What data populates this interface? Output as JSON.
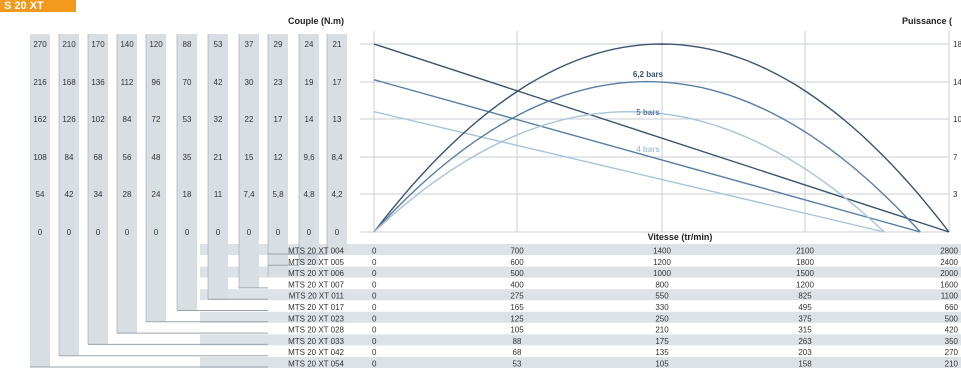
{
  "header": {
    "badge": "S 20 XT"
  },
  "colors": {
    "column_bg": "#d9dee3",
    "row_band": "#dde2e7",
    "grid": "#c9ced3",
    "curve_6_2": "#3a536e",
    "curve_5": "#5a7ea2",
    "curve_4": "#a9c3da",
    "accent": "#f39a1e"
  },
  "chart_data": {
    "type": "line",
    "title": "",
    "y_left_label": "Couple (N.m)",
    "y_right_label": "Puissance (",
    "xlabel": "Vitesse (tr/min)",
    "y_right_ticks": [
      "18",
      "14",
      "10",
      "7",
      "3",
      ""
    ],
    "left_scale_columns": [
      [
        "270",
        "216",
        "162",
        "108",
        "54",
        "0"
      ],
      [
        "210",
        "168",
        "126",
        "84",
        "42",
        "0"
      ],
      [
        "170",
        "136",
        "102",
        "68",
        "34",
        "0"
      ],
      [
        "140",
        "112",
        "84",
        "56",
        "28",
        "0"
      ],
      [
        "120",
        "96",
        "72",
        "48",
        "24",
        "0"
      ],
      [
        "88",
        "70",
        "53",
        "35",
        "18",
        "0"
      ],
      [
        "53",
        "42",
        "32",
        "21",
        "11",
        "0"
      ],
      [
        "37",
        "30",
        "22",
        "15",
        "7,4",
        "0"
      ],
      [
        "29",
        "23",
        "17",
        "12",
        "5,8",
        "0"
      ],
      [
        "24",
        "19",
        "14",
        "9,6",
        "4,8",
        "0"
      ],
      [
        "21",
        "17",
        "13",
        "8,4",
        "4,2",
        "0"
      ]
    ],
    "speed_table": [
      {
        "model": "MTS 20 XT 004",
        "speeds": [
          "0",
          "700",
          "1400",
          "2100",
          "2800"
        ]
      },
      {
        "model": "MTS 20 XT 005",
        "speeds": [
          "0",
          "600",
          "1200",
          "1800",
          "2400"
        ]
      },
      {
        "model": "MTS 20 XT 006",
        "speeds": [
          "0",
          "500",
          "1000",
          "1500",
          "2000"
        ]
      },
      {
        "model": "MTS 20 XT 007",
        "speeds": [
          "0",
          "400",
          "800",
          "1200",
          "1600"
        ]
      },
      {
        "model": "MTS 20 XT 011",
        "speeds": [
          "0",
          "275",
          "550",
          "825",
          "1100"
        ]
      },
      {
        "model": "MTS 20 XT 017",
        "speeds": [
          "0",
          "165",
          "330",
          "495",
          "660"
        ]
      },
      {
        "model": "MTS 20 XT 023",
        "speeds": [
          "0",
          "125",
          "250",
          "375",
          "500"
        ]
      },
      {
        "model": "MTS 20 XT 028",
        "speeds": [
          "0",
          "105",
          "210",
          "315",
          "420"
        ]
      },
      {
        "model": "MTS 20 XT 033",
        "speeds": [
          "0",
          "88",
          "175",
          "263",
          "350"
        ]
      },
      {
        "model": "MTS 20 XT 042",
        "speeds": [
          "0",
          "68",
          "135",
          "203",
          "270"
        ]
      },
      {
        "model": "MTS 20 XT 054",
        "speeds": [
          "0",
          "53",
          "105",
          "158",
          "210"
        ]
      }
    ],
    "xlim": [
      0,
      4
    ],
    "ylim_torque": [
      0,
      5
    ],
    "ylim_power": [
      0,
      5
    ],
    "torque_lines": [
      {
        "pressure": "6,2 bars",
        "x": [
          0,
          4
        ],
        "y": [
          5,
          0
        ]
      },
      {
        "pressure": "5 bars",
        "x": [
          0,
          3.8
        ],
        "y": [
          4.05,
          0
        ]
      },
      {
        "pressure": "4 bars",
        "x": [
          0,
          3.55
        ],
        "y": [
          3.2,
          0
        ]
      }
    ],
    "power_curves": [
      {
        "pressure": "6,2 bars",
        "x": [
          0,
          1,
          2,
          3,
          4
        ],
        "y": [
          0,
          3.75,
          5,
          3.75,
          0
        ],
        "label": "6,2 bars"
      },
      {
        "pressure": "5 bars",
        "x": [
          0,
          0.95,
          1.9,
          2.85,
          3.8
        ],
        "y": [
          0,
          3.0,
          4.0,
          3.0,
          0
        ],
        "label": "5 bars"
      },
      {
        "pressure": "4 bars",
        "x": [
          0,
          0.89,
          1.78,
          2.66,
          3.55
        ],
        "y": [
          0,
          2.4,
          3.2,
          2.4,
          0
        ],
        "label": "4 bars"
      }
    ]
  }
}
